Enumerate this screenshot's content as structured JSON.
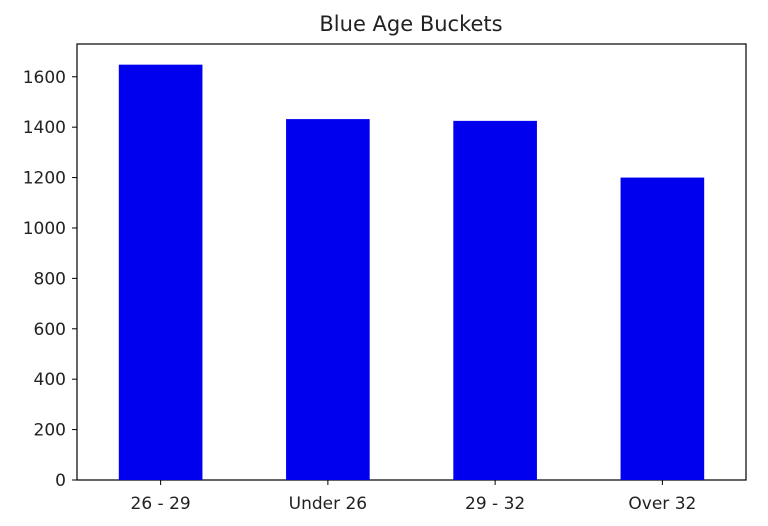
{
  "chart_data": {
    "type": "bar",
    "title": "Blue Age Buckets",
    "xlabel": "",
    "ylabel": "",
    "categories": [
      "26 - 29",
      "Under 26",
      "29 - 32",
      "Over 32"
    ],
    "values": [
      1648,
      1432,
      1425,
      1200
    ],
    "ylim": [
      0,
      1730
    ],
    "yticks": [
      0,
      200,
      400,
      600,
      800,
      1000,
      1200,
      1400,
      1600
    ],
    "bar_color": "#0000ee",
    "grid": false,
    "legend": "none"
  }
}
